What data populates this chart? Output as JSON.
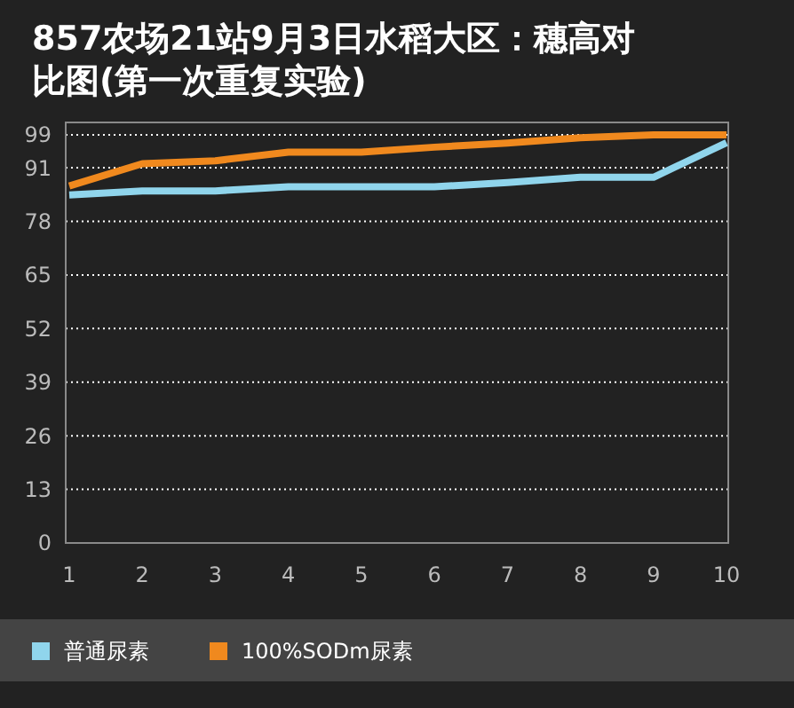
{
  "chart_data": {
    "type": "line",
    "title": "857农场21站9月3日水稻大区：穗高对比图(第一次重复实验)",
    "categories": [
      "1",
      "2",
      "3",
      "4",
      "5",
      "6",
      "7",
      "8",
      "9",
      "10"
    ],
    "series": [
      {
        "name": "普通尿素",
        "color": "#90d5ec",
        "values": [
          84.4,
          85.4,
          85.4,
          86.4,
          86.4,
          86.4,
          87.4,
          88.7,
          88.7,
          97.1
        ]
      },
      {
        "name": "100%SODm尿素",
        "color": "#f0891e",
        "values": [
          86.6,
          92,
          92.7,
          94.8,
          94.8,
          96,
          97,
          98.3,
          99,
          99
        ]
      }
    ],
    "ylim": [
      0,
      102
    ],
    "yticks": [
      0,
      13,
      26,
      39,
      52,
      65,
      78,
      91,
      99
    ],
    "grid": "y",
    "legend": "bottom",
    "marker": "none",
    "line_style": "solid"
  }
}
